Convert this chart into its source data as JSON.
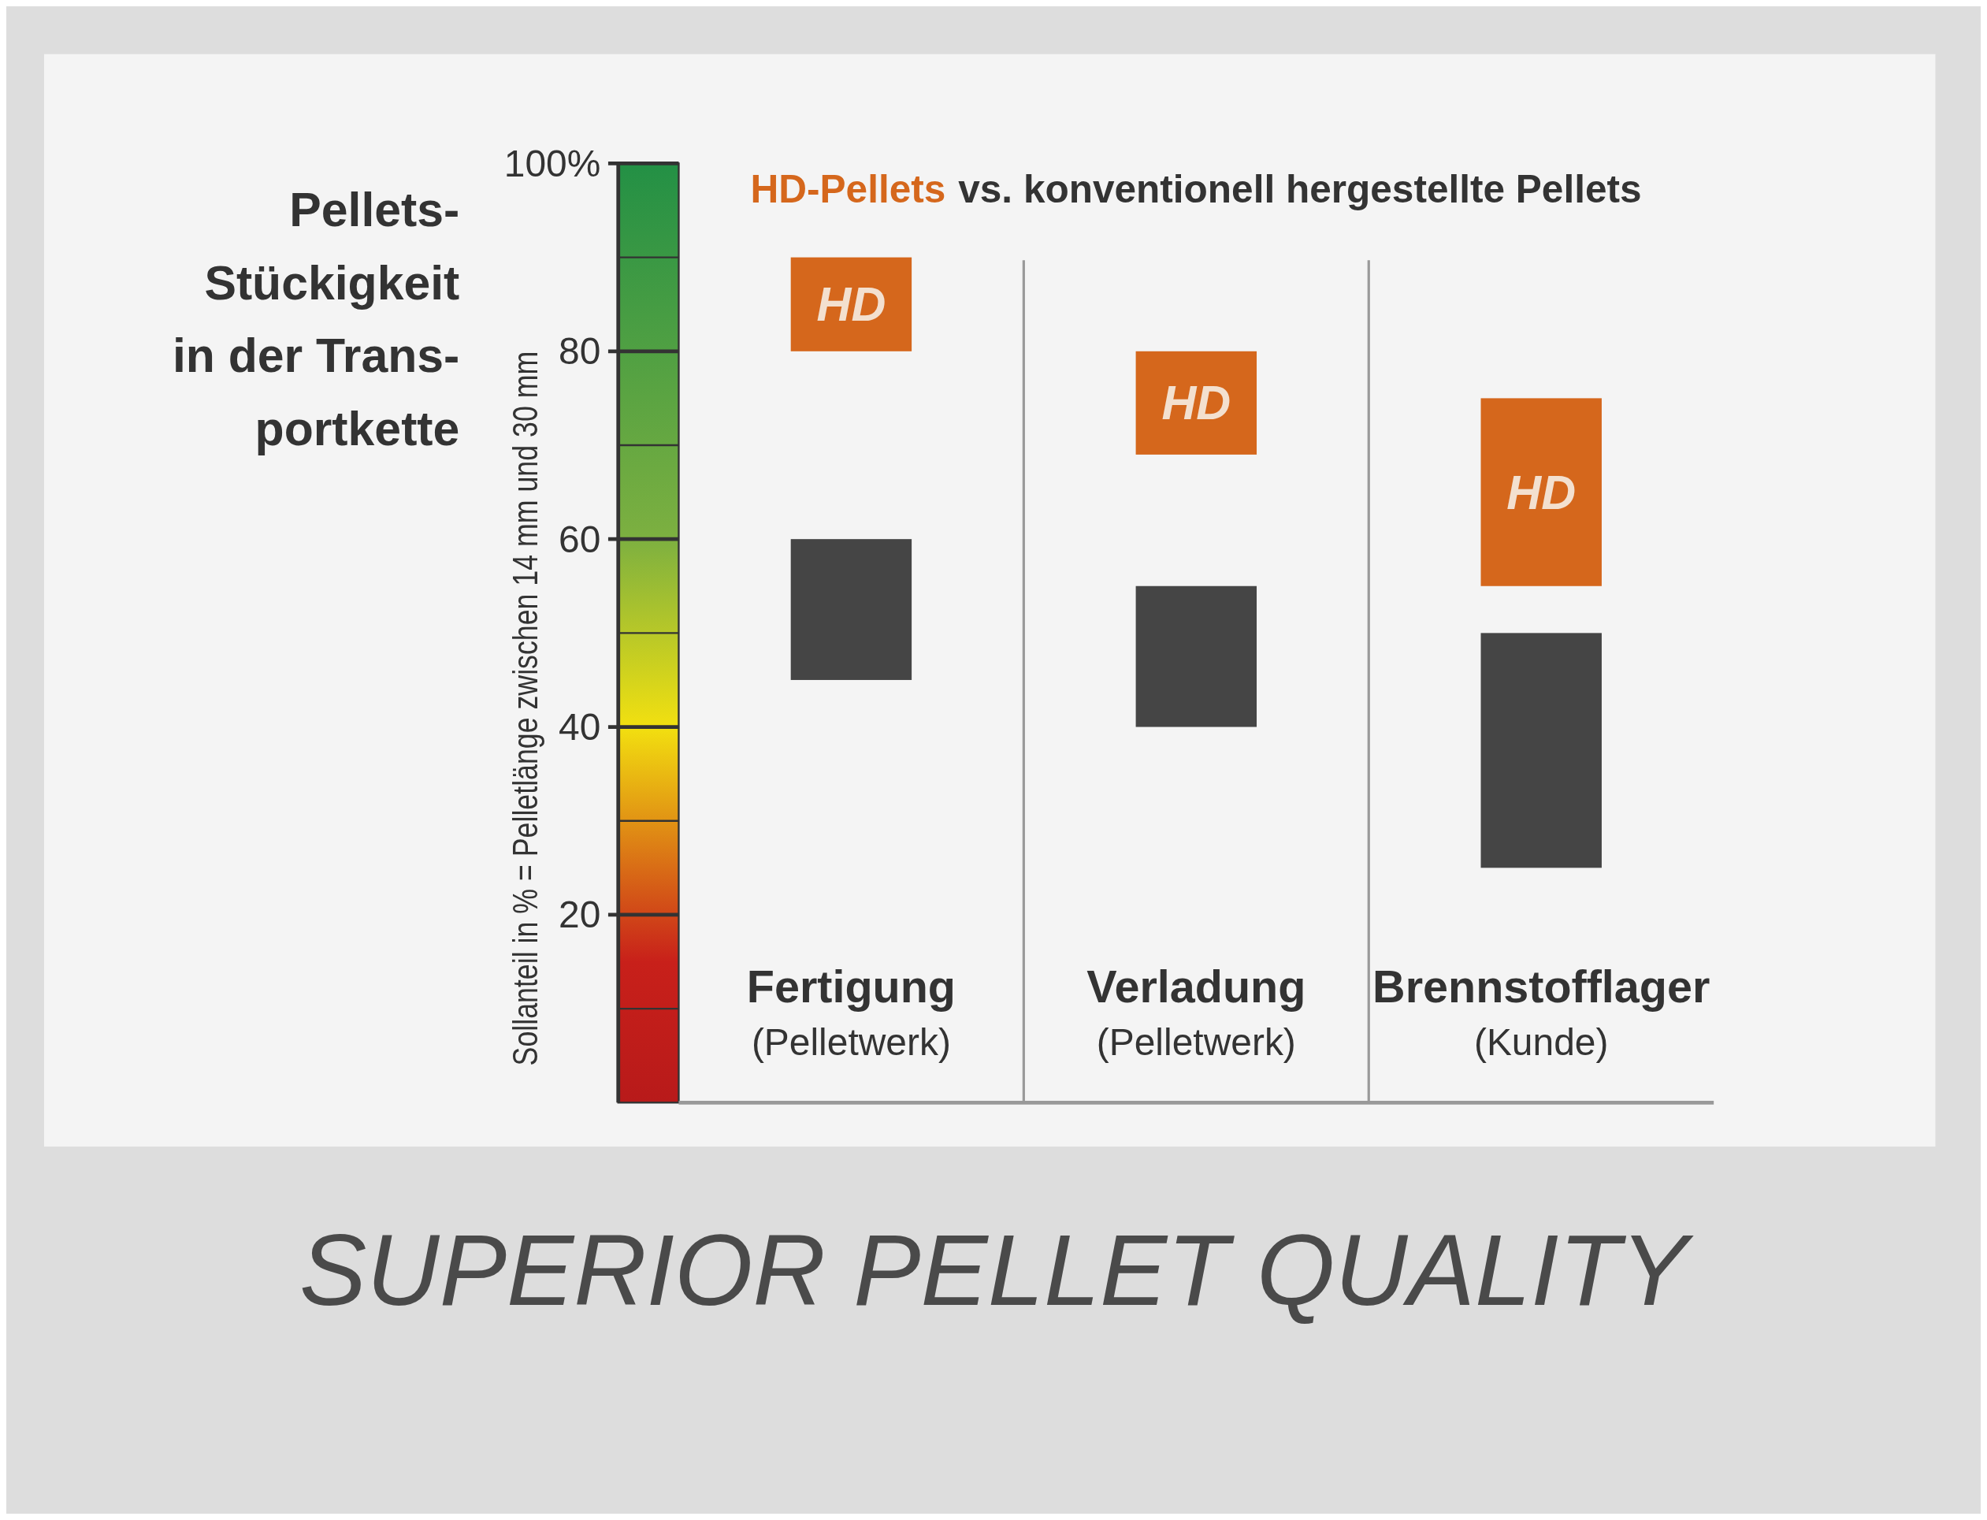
{
  "chart_data": {
    "type": "bar",
    "title": "vs. konventionell hergestellte Pellets",
    "ylabel": "Sollanteil in % = Pelletlänge zwischen 14 mm und 30 mm",
    "categories": [
      "Fertigung\n(Pelletwerk)",
      "Verladung\n(Pelletwerk)",
      "Brennstofflager\n(Kunde)"
    ],
    "series": [
      {
        "name": "HD-Pellets",
        "color": "#d5671c",
        "values": [
          10,
          11,
          20
        ],
        "base": [
          80,
          69,
          55
        ]
      },
      {
        "color": "#454545",
        "values": [
          15,
          15,
          25
        ],
        "base": [
          45,
          40,
          25
        ]
      }
    ],
    "ylim": [
      0,
      100
    ],
    "yticks": [
      20,
      40,
      60,
      80,
      {
        "value": 100,
        "label": "100%"
      }
    ],
    "annotations": [
      "Pellets-\nStückigkeit\nin der Trans-\nportkette",
      "SUPERIOR PELLET QUALITY",
      "HD",
      "HD",
      "HD"
    ]
  }
}
